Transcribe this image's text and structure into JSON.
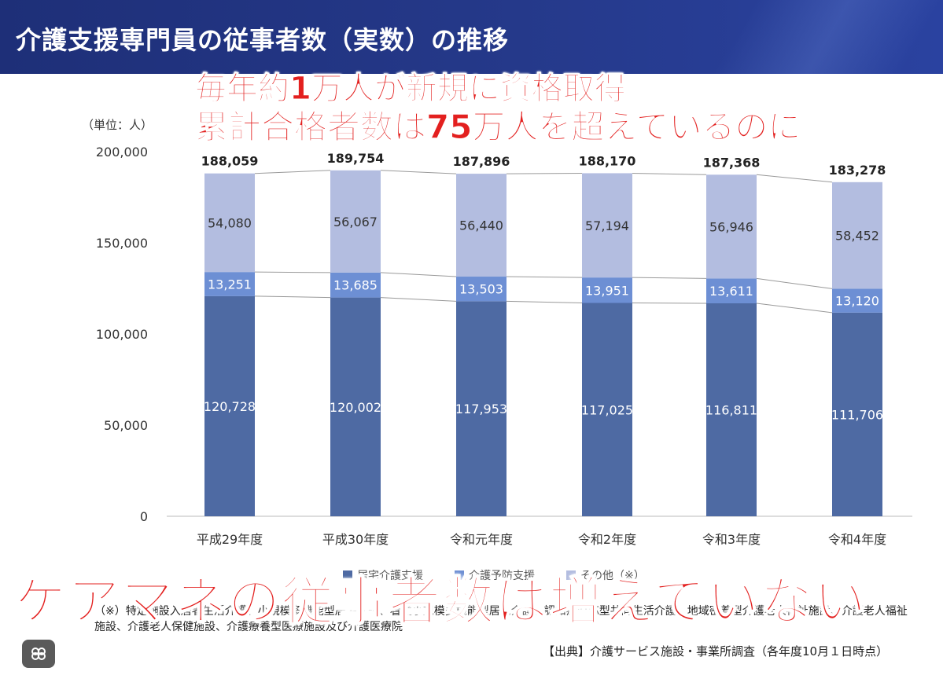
{
  "header": {
    "title": "介護支援専門員の従事者数（実数）の推移"
  },
  "overlay": {
    "line1": "毎年約1万人が新規に資格取得",
    "line2": "累計合格者数は75万人を超えているのに",
    "main": "ケアマネの従事者数は増えていない"
  },
  "unit_label": "（単位：人）",
  "footnote": "（※）特定施設入居者生活介護、小規模多機能型居宅介護、看護小規模多機能型居宅介護、認知症対応型共同生活介護、地域密着型介護老人福祉施設、介護老人福祉施設、介護老人保健施設、介護療養型医療施設及び介護医療院",
  "source": "【出典】介護サービス施設・事業所調査（各年度10月１日時点）",
  "icons": {
    "brain_button": "brain-icon"
  },
  "chart_data": {
    "type": "bar",
    "stacked": true,
    "categories": [
      "平成29年度",
      "平成30年度",
      "令和元年度",
      "令和2年度",
      "令和3年度",
      "令和4年度"
    ],
    "series": [
      {
        "name": "居宅介護支援",
        "color": "#4e6aa3",
        "values": [
          120728,
          120002,
          117953,
          117025,
          116811,
          111706
        ],
        "labels": [
          "120,728",
          "120,002",
          "117,953",
          "117,025",
          "116,811",
          "111,706"
        ]
      },
      {
        "name": "介護予防支援",
        "color": "#6d8fd4",
        "values": [
          13251,
          13685,
          13503,
          13951,
          13611,
          13120
        ],
        "labels": [
          "13,251",
          "13,685",
          "13,503",
          "13,951",
          "13,611",
          "13,120"
        ]
      },
      {
        "name": "その他（※）",
        "color": "#b3bde0",
        "values": [
          54080,
          56067,
          56440,
          57194,
          56946,
          58452
        ],
        "labels": [
          "54,080",
          "56,067",
          "56,440",
          "57,194",
          "56,946",
          "58,452"
        ]
      }
    ],
    "totals": [
      188059,
      189754,
      187896,
      188170,
      187368,
      183278
    ],
    "total_labels": [
      "188,059",
      "189,754",
      "187,896",
      "188,170",
      "187,368",
      "183,278"
    ],
    "yticks": [
      0,
      50000,
      100000,
      150000,
      200000
    ],
    "ytick_labels": [
      "0",
      "50,000",
      "100,000",
      "150,000",
      "200,000"
    ],
    "ylim": [
      0,
      200000
    ],
    "grid": false,
    "legend_position": "bottom"
  }
}
